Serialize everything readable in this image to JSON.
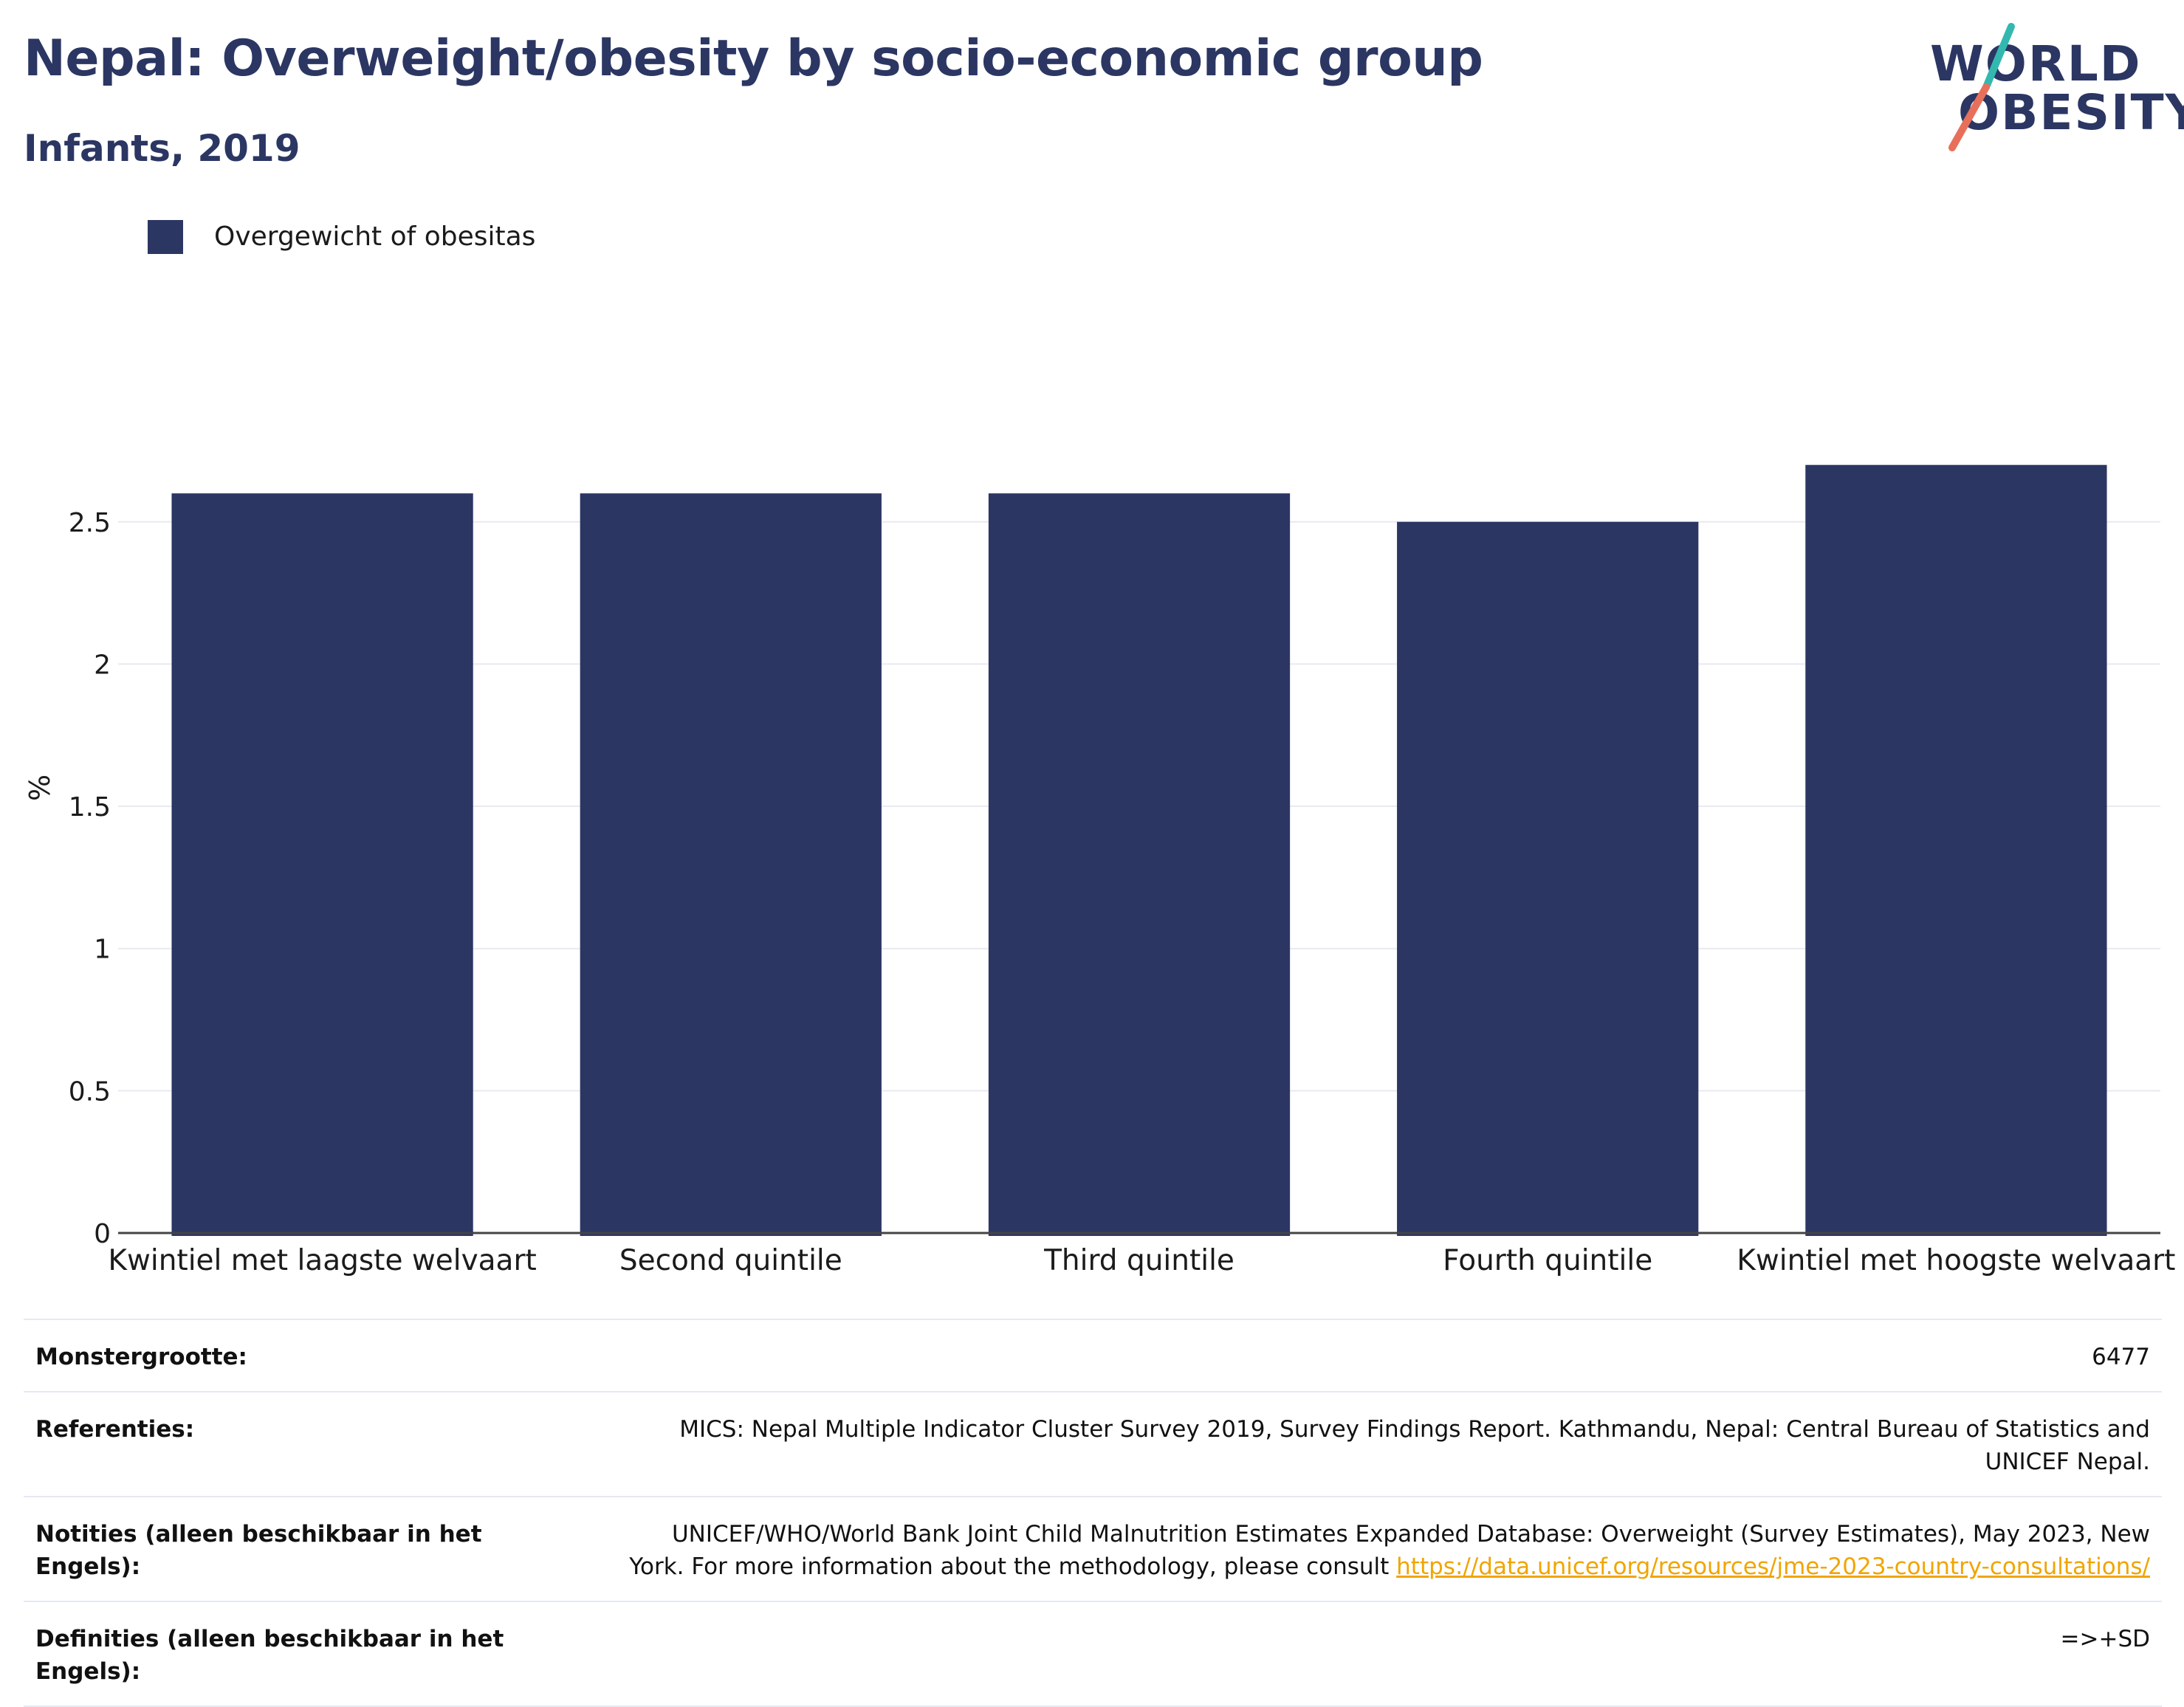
{
  "header": {
    "title": "Nepal: Overweight/obesity by socio-economic group",
    "subtitle": "Infants, 2019"
  },
  "logo": {
    "line1": "WORLD",
    "line2": "OBESITY",
    "colors": {
      "text": "#2b3663",
      "slash_top": "#33b8b0",
      "slash_bottom": "#e8705a"
    }
  },
  "legend": {
    "label": "Overgewicht of obesitas"
  },
  "colors": {
    "bar": "#2b3663",
    "grid": "#e8eaf0",
    "axis": "#444444",
    "link": "#f0a500"
  },
  "chart_data": {
    "type": "bar",
    "categories": [
      "Kwintiel met laagste welvaart",
      "Second quintile",
      "Third quintile",
      "Fourth quintile",
      "Kwintiel met hoogste welvaart"
    ],
    "series": [
      {
        "name": "Overgewicht of obesitas",
        "values": [
          2.6,
          2.6,
          2.6,
          2.5,
          2.7
        ]
      }
    ],
    "ylabel": "%",
    "ylim": [
      0,
      3.4
    ],
    "yticks": [
      0,
      0.5,
      1,
      1.5,
      2,
      2.5
    ],
    "ytick_labels": [
      "0",
      "0.5",
      "1",
      "1.5",
      "2",
      "2.5"
    ],
    "grid": true,
    "legend_position": "top-left"
  },
  "meta": {
    "sample_label": "Monstergrootte:",
    "sample_value": "6477",
    "references_label": "Referenties:",
    "references_value": "MICS: Nepal Multiple Indicator Cluster Survey 2019, Survey Findings Report. Kathmandu, Nepal: Central Bureau of Statistics and UNICEF Nepal.",
    "notes_label": "Notities (alleen beschikbaar in het Engels):",
    "notes_value": "UNICEF/WHO/World Bank Joint Child Malnutrition Estimates Expanded Database: Overweight (Survey Estimates), May 2023, New York. For more information about the methodology, please consult",
    "notes_link": "https://data.unicef.org/resources/jme-2023-country-consultations/",
    "definitions_label": "Definities (alleen beschikbaar in het Engels):",
    "definitions_value": "=>+SD"
  }
}
